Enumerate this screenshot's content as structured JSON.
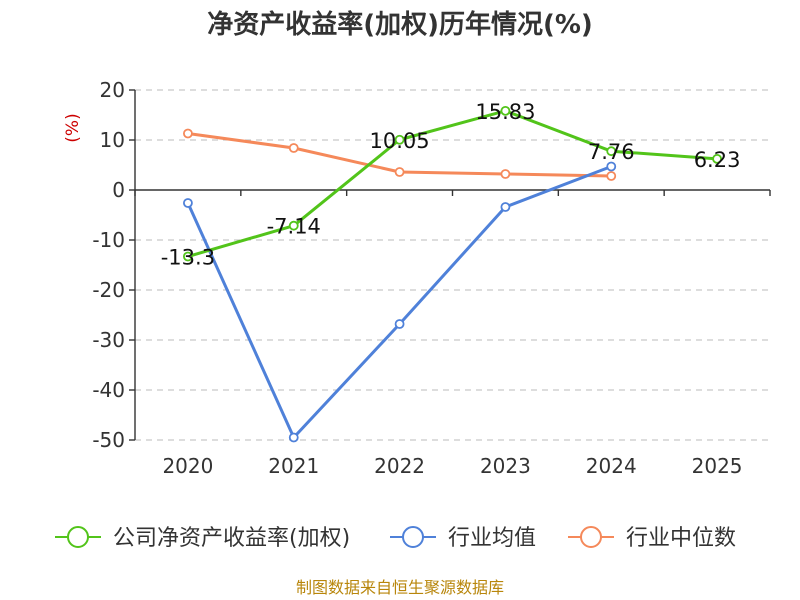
{
  "chart_data": {
    "type": "line",
    "title": "净资产收益率(加权)历年情况(%)",
    "ylabel": "(%)",
    "xlabel": "",
    "categories": [
      "2020",
      "2021",
      "2022",
      "2023",
      "2024",
      "2025"
    ],
    "ylim": [
      -50,
      20
    ],
    "yticks": [
      20,
      10,
      0,
      -10,
      -20,
      -30,
      -40,
      -50
    ],
    "grid": true,
    "legend_position": "bottom",
    "series": [
      {
        "name": "公司净资产收益率(加权)",
        "color": "#52c41a",
        "values": [
          -13.3,
          -7.14,
          10.05,
          15.83,
          7.76,
          6.23
        ],
        "labels": [
          "-13.3",
          "-7.14",
          "10.05",
          "15.83",
          "7.76",
          "6.23"
        ]
      },
      {
        "name": "行业均值",
        "color": "#4f81d9",
        "values": [
          -2.6,
          -49.5,
          -26.8,
          -3.4,
          4.7,
          null
        ]
      },
      {
        "name": "行业中位数",
        "color": "#f5895a",
        "values": [
          11.3,
          8.4,
          3.6,
          3.2,
          2.8,
          null
        ]
      }
    ]
  },
  "footer": {
    "source": "制图数据来自恒生聚源数据库"
  }
}
